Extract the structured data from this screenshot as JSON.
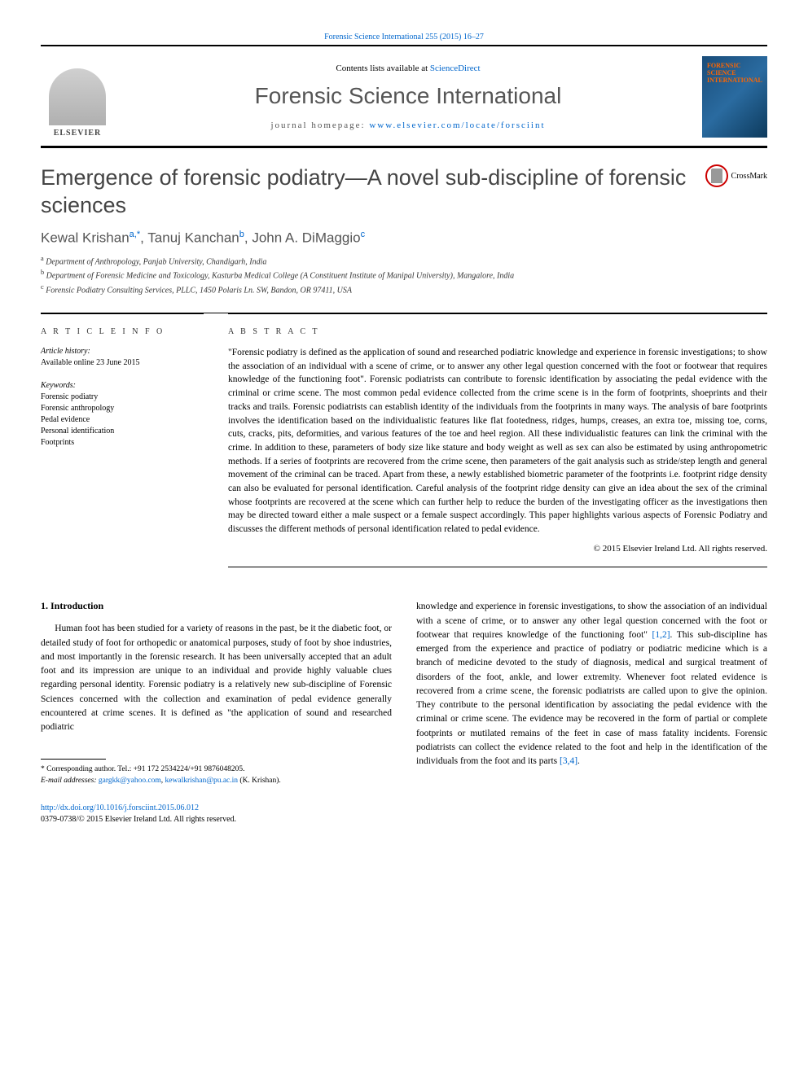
{
  "citation": {
    "text": "Forensic Science International 255 (2015) 16–27",
    "link_color": "#0066cc"
  },
  "header": {
    "contents_prefix": "Contents lists available at ",
    "contents_link": "ScienceDirect",
    "journal_name": "Forensic Science International",
    "homepage_prefix": "journal homepage: ",
    "homepage_url": "www.elsevier.com/locate/forsciint",
    "elsevier_label": "ELSEVIER",
    "cover_text_1": "FORENSIC",
    "cover_text_2": "SCIENCE",
    "cover_text_3": "INTERNATIONAL"
  },
  "title": "Emergence of forensic podiatry—A novel sub-discipline of forensic sciences",
  "crossmark": "CrossMark",
  "authors": {
    "a1_name": "Kewal Krishan",
    "a1_sup": "a,",
    "a1_corr": "*",
    "a2_name": "Tanuj Kanchan",
    "a2_sup": "b",
    "a3_name": "John A. DiMaggio",
    "a3_sup": "c",
    "sep": ", "
  },
  "affiliations": {
    "a": "Department of Anthropology, Panjab University, Chandigarh, India",
    "b": "Department of Forensic Medicine and Toxicology, Kasturba Medical College (A Constituent Institute of Manipal University), Mangalore, India",
    "c": "Forensic Podiatry Consulting Services, PLLC, 1450 Polaris Ln. SW, Bandon, OR 97411, USA"
  },
  "article_info": {
    "heading": "A R T I C L E  I N F O",
    "history_label": "Article history:",
    "history_text": "Available online 23 June 2015",
    "keywords_label": "Keywords:",
    "kw1": "Forensic podiatry",
    "kw2": "Forensic anthropology",
    "kw3": "Pedal evidence",
    "kw4": "Personal identification",
    "kw5": "Footprints"
  },
  "abstract": {
    "heading": "A B S T R A C T",
    "text": "\"Forensic podiatry is defined as the application of sound and researched podiatric knowledge and experience in forensic investigations; to show the association of an individual with a scene of crime, or to answer any other legal question concerned with the foot or footwear that requires knowledge of the functioning foot\". Forensic podiatrists can contribute to forensic identification by associating the pedal evidence with the criminal or crime scene. The most common pedal evidence collected from the crime scene is in the form of footprints, shoeprints and their tracks and trails. Forensic podiatrists can establish identity of the individuals from the footprints in many ways. The analysis of bare footprints involves the identification based on the individualistic features like flat footedness, ridges, humps, creases, an extra toe, missing toe, corns, cuts, cracks, pits, deformities, and various features of the toe and heel region. All these individualistic features can link the criminal with the crime. In addition to these, parameters of body size like stature and body weight as well as sex can also be estimated by using anthropometric methods. If a series of footprints are recovered from the crime scene, then parameters of the gait analysis such as stride/step length and general movement of the criminal can be traced. Apart from these, a newly established biometric parameter of the footprints i.e. footprint ridge density can also be evaluated for personal identification. Careful analysis of the footprint ridge density can give an idea about the sex of the criminal whose footprints are recovered at the scene which can further help to reduce the burden of the investigating officer as the investigations then may be directed toward either a male suspect or a female suspect accordingly. This paper highlights various aspects of Forensic Podiatry and discusses the different methods of personal identification related to pedal evidence.",
    "copyright": "© 2015 Elsevier Ireland Ltd. All rights reserved."
  },
  "body": {
    "section_number": "1.",
    "section_title": "Introduction",
    "col1_para": "Human foot has been studied for a variety of reasons in the past, be it the diabetic foot, or detailed study of foot for orthopedic or anatomical purposes, study of foot by shoe industries, and most importantly in the forensic research. It has been universally accepted that an adult foot and its impression are unique to an individual and provide highly valuable clues regarding personal identity. Forensic podiatry is a relatively new sub-discipline of Forensic Sciences concerned with the collection and examination of pedal evidence generally encountered at crime scenes. It is defined as \"the application of sound and researched podiatric",
    "col2_para_a": "knowledge and experience in forensic investigations, to show the association of an individual with a scene of crime, or to answer any other legal question concerned with the foot or footwear that requires knowledge of the functioning foot\" ",
    "col2_ref1": "[1,2]",
    "col2_para_b": ". This sub-discipline has emerged from the experience and practice of podiatry or podiatric medicine which is a branch of medicine devoted to the study of diagnosis, medical and surgical treatment of disorders of the foot, ankle, and lower extremity. Whenever foot related evidence is recovered from a crime scene, the forensic podiatrists are called upon to give the opinion. They contribute to the personal identification by associating the pedal evidence with the criminal or crime scene. The evidence may be recovered in the form of partial or complete footprints or mutilated remains of the feet in case of mass fatality incidents. Forensic podiatrists can collect the evidence related to the foot and help in the identification of the individuals from the foot and its parts ",
    "col2_ref2": "[3,4]",
    "col2_para_c": "."
  },
  "footnote": {
    "corr_label": "* Corresponding author. Tel.: +91 172 2534224/+91 9876048205.",
    "email_label": "E-mail addresses:",
    "email1": "gargkk@yahoo.com",
    "email_sep": ", ",
    "email2": "kewalkrishan@pu.ac.in",
    "email_suffix": " (K. Krishan)."
  },
  "doi": {
    "url": "http://dx.doi.org/10.1016/j.forsciint.2015.06.012",
    "issn_line": "0379-0738/© 2015 Elsevier Ireland Ltd. All rights reserved."
  },
  "colors": {
    "link": "#0066cc",
    "text": "#000000",
    "heading_gray": "#555555"
  }
}
